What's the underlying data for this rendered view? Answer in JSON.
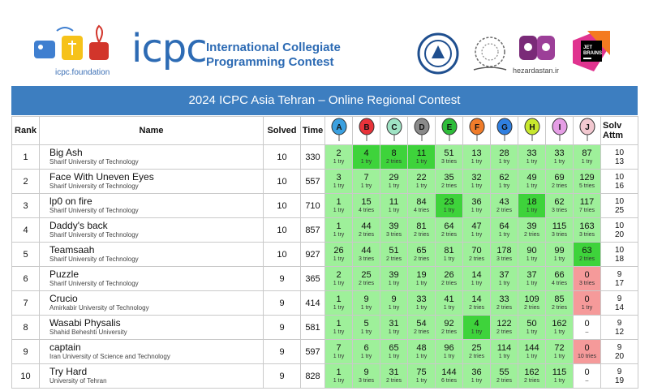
{
  "header": {
    "icpc_word": "icpc",
    "title_line1": "International Collegiate",
    "title_line2": "Programming Contest",
    "foundation_url": "icpc.foundation",
    "sponsor_label": "hezardastan.ir",
    "jetbrains_text_1": "JET",
    "jetbrains_text_2": "BRAINS"
  },
  "banner": {
    "title": "2024 ICPC Asia Tehran – Online Regional Contest"
  },
  "columns": {
    "rank": "Rank",
    "name": "Name",
    "solved": "Solved",
    "time": "Time",
    "attm_1": "Solv",
    "attm_2": "Attm"
  },
  "problems": [
    {
      "letter": "A",
      "color": "#3aa0e0"
    },
    {
      "letter": "B",
      "color": "#e8333a"
    },
    {
      "letter": "C",
      "color": "#9fe3c4"
    },
    {
      "letter": "D",
      "color": "#8a8a8a"
    },
    {
      "letter": "E",
      "color": "#2ebd3a"
    },
    {
      "letter": "F",
      "color": "#f07c2a"
    },
    {
      "letter": "G",
      "color": "#2f7fe0"
    },
    {
      "letter": "H",
      "color": "#c8e82e"
    },
    {
      "letter": "I",
      "color": "#e59ee5"
    },
    {
      "letter": "J",
      "color": "#f2c8d0"
    }
  ],
  "teams": [
    {
      "rank": "1",
      "name": "Big Ash",
      "aff": "Sharif University of Technology",
      "solved": "10",
      "time": "330",
      "cells": [
        [
          "2",
          "1 try",
          "ok"
        ],
        [
          "4",
          "1 try",
          "first"
        ],
        [
          "8",
          "2 tries",
          "first"
        ],
        [
          "11",
          "1 try",
          "first"
        ],
        [
          "51",
          "3 tries",
          "ok"
        ],
        [
          "13",
          "1 try",
          "ok"
        ],
        [
          "28",
          "1 try",
          "ok"
        ],
        [
          "33",
          "1 try",
          "ok"
        ],
        [
          "33",
          "1 try",
          "ok"
        ],
        [
          "87",
          "1 try",
          "ok"
        ]
      ],
      "attm": [
        "10",
        "13"
      ]
    },
    {
      "rank": "2",
      "name": "Face With Uneven Eyes",
      "aff": "Sharif University of Technology",
      "solved": "10",
      "time": "557",
      "cells": [
        [
          "3",
          "1 try",
          "ok"
        ],
        [
          "7",
          "1 try",
          "ok"
        ],
        [
          "29",
          "1 try",
          "ok"
        ],
        [
          "22",
          "1 try",
          "ok"
        ],
        [
          "35",
          "2 tries",
          "ok"
        ],
        [
          "32",
          "1 try",
          "ok"
        ],
        [
          "62",
          "1 try",
          "ok"
        ],
        [
          "49",
          "1 try",
          "ok"
        ],
        [
          "69",
          "2 tries",
          "ok"
        ],
        [
          "129",
          "5 tries",
          "ok"
        ]
      ],
      "attm": [
        "10",
        "16"
      ]
    },
    {
      "rank": "3",
      "name": "lp0 on fire",
      "aff": "Sharif University of Technology",
      "solved": "10",
      "time": "710",
      "cells": [
        [
          "1",
          "1 try",
          "ok"
        ],
        [
          "15",
          "4 tries",
          "ok"
        ],
        [
          "11",
          "1 try",
          "ok"
        ],
        [
          "84",
          "4 tries",
          "ok"
        ],
        [
          "23",
          "1 try",
          "first"
        ],
        [
          "36",
          "1 try",
          "ok"
        ],
        [
          "43",
          "2 tries",
          "ok"
        ],
        [
          "18",
          "1 try",
          "first"
        ],
        [
          "62",
          "3 tries",
          "ok"
        ],
        [
          "117",
          "7 tries",
          "ok"
        ]
      ],
      "attm": [
        "10",
        "25"
      ]
    },
    {
      "rank": "4",
      "name": "Daddy's back",
      "aff": "Sharif University of Technology",
      "solved": "10",
      "time": "857",
      "cells": [
        [
          "1",
          "1 try",
          "ok"
        ],
        [
          "44",
          "2 tries",
          "ok"
        ],
        [
          "39",
          "3 tries",
          "ok"
        ],
        [
          "81",
          "2 tries",
          "ok"
        ],
        [
          "64",
          "2 tries",
          "ok"
        ],
        [
          "47",
          "1 try",
          "ok"
        ],
        [
          "64",
          "1 try",
          "ok"
        ],
        [
          "39",
          "2 tries",
          "ok"
        ],
        [
          "115",
          "3 tries",
          "ok"
        ],
        [
          "163",
          "3 tries",
          "ok"
        ]
      ],
      "attm": [
        "10",
        "20"
      ]
    },
    {
      "rank": "5",
      "name": "Teamsaah",
      "aff": "Sharif University of Technology",
      "solved": "10",
      "time": "927",
      "cells": [
        [
          "26",
          "1 try",
          "ok"
        ],
        [
          "44",
          "3 tries",
          "ok"
        ],
        [
          "51",
          "2 tries",
          "ok"
        ],
        [
          "65",
          "2 tries",
          "ok"
        ],
        [
          "81",
          "1 try",
          "ok"
        ],
        [
          "70",
          "2 tries",
          "ok"
        ],
        [
          "178",
          "3 tries",
          "ok"
        ],
        [
          "90",
          "1 try",
          "ok"
        ],
        [
          "99",
          "1 try",
          "ok"
        ],
        [
          "63",
          "2 tries",
          "first"
        ]
      ],
      "attm": [
        "10",
        "18"
      ]
    },
    {
      "rank": "6",
      "name": "Puzzle",
      "aff": "Sharif University of Technology",
      "solved": "9",
      "time": "365",
      "cells": [
        [
          "2",
          "1 try",
          "ok"
        ],
        [
          "25",
          "2 tries",
          "ok"
        ],
        [
          "39",
          "1 try",
          "ok"
        ],
        [
          "19",
          "1 try",
          "ok"
        ],
        [
          "26",
          "2 tries",
          "ok"
        ],
        [
          "14",
          "1 try",
          "ok"
        ],
        [
          "37",
          "1 try",
          "ok"
        ],
        [
          "37",
          "1 try",
          "ok"
        ],
        [
          "66",
          "4 tries",
          "ok"
        ],
        [
          "0",
          "3 tries",
          "fail"
        ]
      ],
      "attm": [
        "9",
        "17"
      ]
    },
    {
      "rank": "7",
      "name": "Crucio",
      "aff": "Amirkabir University of Technology",
      "solved": "9",
      "time": "414",
      "cells": [
        [
          "1",
          "1 try",
          "ok"
        ],
        [
          "9",
          "1 try",
          "ok"
        ],
        [
          "9",
          "1 try",
          "ok"
        ],
        [
          "33",
          "1 try",
          "ok"
        ],
        [
          "41",
          "1 try",
          "ok"
        ],
        [
          "14",
          "2 tries",
          "ok"
        ],
        [
          "33",
          "2 tries",
          "ok"
        ],
        [
          "109",
          "2 tries",
          "ok"
        ],
        [
          "85",
          "2 tries",
          "ok"
        ],
        [
          "0",
          "1 try",
          "fail"
        ]
      ],
      "attm": [
        "9",
        "14"
      ]
    },
    {
      "rank": "8",
      "name": "Wasabi Physalis",
      "aff": "Shahid Beheshti University",
      "solved": "9",
      "time": "581",
      "cells": [
        [
          "1",
          "1 try",
          "ok"
        ],
        [
          "5",
          "1 try",
          "ok"
        ],
        [
          "31",
          "1 try",
          "ok"
        ],
        [
          "54",
          "2 tries",
          "ok"
        ],
        [
          "92",
          "2 tries",
          "ok"
        ],
        [
          "4",
          "1 try",
          "first"
        ],
        [
          "122",
          "2 tries",
          "ok"
        ],
        [
          "50",
          "1 try",
          "ok"
        ],
        [
          "162",
          "1 try",
          "ok"
        ],
        [
          "0",
          "–",
          "none"
        ]
      ],
      "attm": [
        "9",
        "12"
      ]
    },
    {
      "rank": "9",
      "name": "captain",
      "aff": "Iran University of Science and Technology",
      "solved": "9",
      "time": "597",
      "cells": [
        [
          "7",
          "1 try",
          "ok"
        ],
        [
          "6",
          "1 try",
          "ok"
        ],
        [
          "65",
          "1 try",
          "ok"
        ],
        [
          "48",
          "1 try",
          "ok"
        ],
        [
          "96",
          "1 try",
          "ok"
        ],
        [
          "25",
          "2 tries",
          "ok"
        ],
        [
          "114",
          "1 try",
          "ok"
        ],
        [
          "144",
          "1 try",
          "ok"
        ],
        [
          "72",
          "1 try",
          "ok"
        ],
        [
          "0",
          "10 tries",
          "fail"
        ]
      ],
      "attm": [
        "9",
        "20"
      ]
    },
    {
      "rank": "10",
      "name": "Try Hard",
      "aff": "University of Tehran",
      "solved": "9",
      "time": "828",
      "cells": [
        [
          "1",
          "1 try",
          "ok"
        ],
        [
          "9",
          "3 tries",
          "ok"
        ],
        [
          "31",
          "2 tries",
          "ok"
        ],
        [
          "75",
          "1 try",
          "ok"
        ],
        [
          "144",
          "6 tries",
          "ok"
        ],
        [
          "36",
          "1 try",
          "ok"
        ],
        [
          "55",
          "2 tries",
          "ok"
        ],
        [
          "162",
          "2 tries",
          "ok"
        ],
        [
          "115",
          "1 try",
          "ok"
        ],
        [
          "0",
          "–",
          "none"
        ]
      ],
      "attm": [
        "9",
        "19"
      ]
    }
  ]
}
